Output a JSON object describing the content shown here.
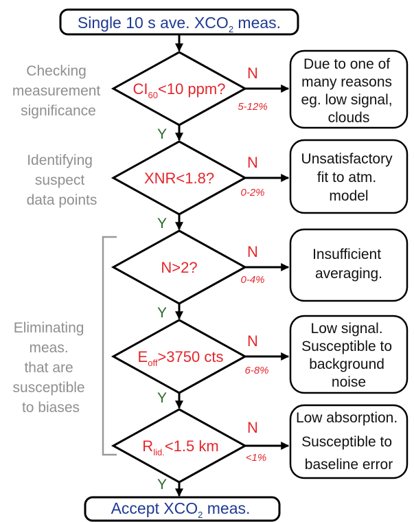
{
  "start": {
    "text_main": "Single 10 s ave. XCO",
    "sub": "2",
    "text_tail": " meas."
  },
  "end": {
    "text_main": "Accept XCO",
    "sub": "2",
    "text_tail": " meas."
  },
  "yes_label": "Y",
  "no_label": "N",
  "stage_labels": {
    "significance": [
      "Checking",
      "measurement",
      "significance"
    ],
    "suspect": [
      "Identifying",
      "suspect",
      "data points"
    ],
    "biases": [
      "Eliminating",
      "meas.",
      "that are",
      "susceptible",
      "to biases"
    ]
  },
  "decisions": [
    {
      "pre": "CI",
      "sub": "60",
      "post": "<10 ppm?",
      "pct": "5-12%",
      "outcome": [
        "Due to one of",
        "many reasons",
        "eg. low signal,",
        "clouds"
      ]
    },
    {
      "pre": "XNR<1.8?",
      "sub": "",
      "post": "",
      "pct": "0-2%",
      "outcome": [
        "Unsatisfactory",
        "fit to atm.",
        "model"
      ]
    },
    {
      "pre": "N>2?",
      "sub": "",
      "post": "",
      "pct": "0-4%",
      "outcome": [
        "Insufficient",
        "averaging."
      ]
    },
    {
      "pre": "E",
      "sub": "off",
      "post": ">3750 cts",
      "pct": "6-8%",
      "outcome": [
        "Low signal.",
        "Susceptible to",
        "background",
        "noise"
      ]
    },
    {
      "pre": "R",
      "sub": "lid.",
      "post": "<1.5 km",
      "pct": "<1%",
      "outcome": [
        "Low absorption.",
        "Susceptible to",
        "baseline error"
      ]
    }
  ]
}
